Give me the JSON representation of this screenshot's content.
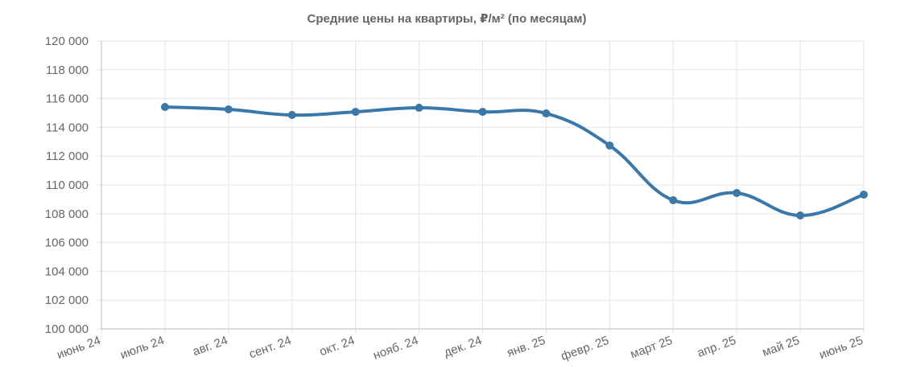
{
  "chart_data": {
    "type": "line",
    "title": "Средние цены на квартиры, ₽/м² (по месяцам)",
    "categories": [
      "июнь 24",
      "июль 24",
      "авг. 24",
      "сент. 24",
      "окт. 24",
      "нояб. 24",
      "дек. 24",
      "янв. 25",
      "февр. 25",
      "март 25",
      "апр. 25",
      "май 25",
      "июнь 25"
    ],
    "series": [
      {
        "color": "#3a78aa",
        "values": [
          null,
          115420,
          115250,
          114860,
          115080,
          115360,
          115080,
          114970,
          112740,
          108940,
          109440,
          107880,
          109330
        ]
      }
    ],
    "ylim": [
      100000,
      120000
    ],
    "yticks": [
      {
        "value": 100000,
        "label": "100 000"
      },
      {
        "value": 102000,
        "label": "102 000"
      },
      {
        "value": 104000,
        "label": "104 000"
      },
      {
        "value": 106000,
        "label": "106 000"
      },
      {
        "value": 108000,
        "label": "108 000"
      },
      {
        "value": 110000,
        "label": "110 000"
      },
      {
        "value": 112000,
        "label": "112 000"
      },
      {
        "value": 114000,
        "label": "114 000"
      },
      {
        "value": 116000,
        "label": "116 000"
      },
      {
        "value": 118000,
        "label": "118 000"
      },
      {
        "value": 120000,
        "label": "120 000"
      }
    ],
    "grid": true
  }
}
